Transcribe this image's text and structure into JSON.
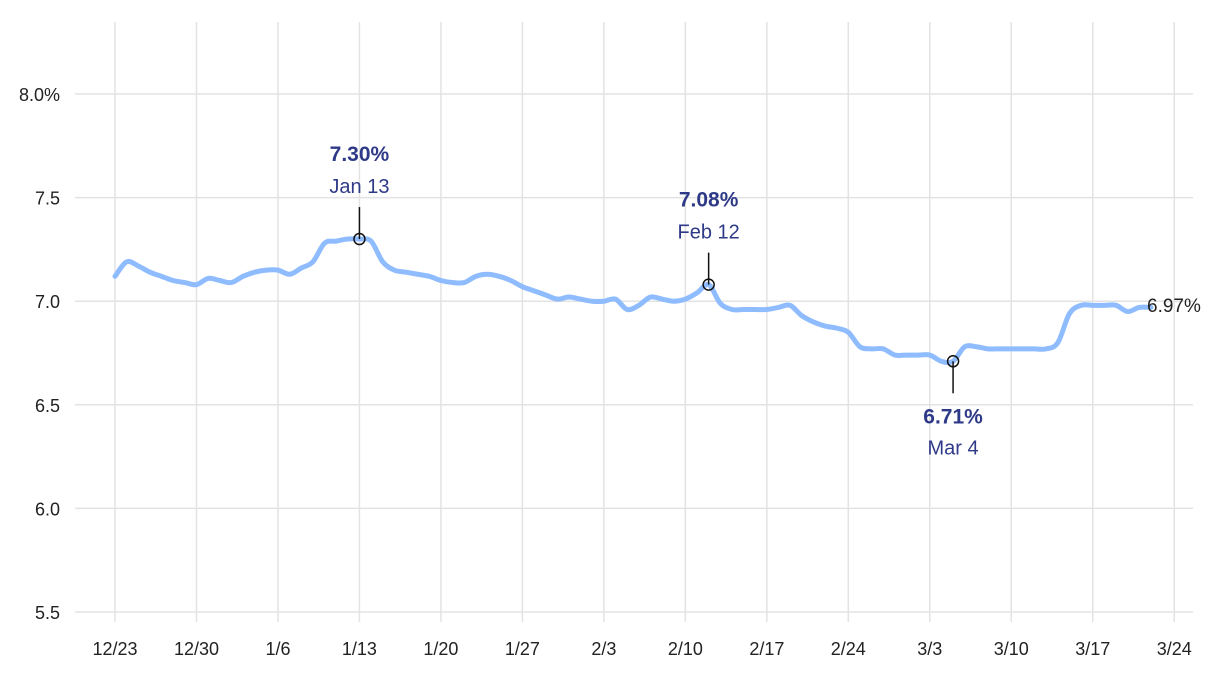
{
  "chart_data": {
    "type": "line",
    "title": "",
    "xlabel": "",
    "ylabel": "",
    "ylim": [
      5.5,
      8.2
    ],
    "y_ticks": [
      "5.5",
      "6.0",
      "6.5",
      "7.0",
      "7.5",
      "8.0%"
    ],
    "y_tick_values": [
      5.5,
      6.0,
      6.5,
      7.0,
      7.5,
      8.0
    ],
    "x_ticks": [
      "12/23",
      "12/30",
      "1/6",
      "1/13",
      "1/20",
      "1/27",
      "2/3",
      "2/10",
      "2/17",
      "2/24",
      "3/3",
      "3/10",
      "3/17",
      "3/24"
    ],
    "grid": true,
    "line_color": "#8fbcff",
    "annotation_color": "#2e3a87",
    "x": [
      "12/23",
      "12/24",
      "12/25",
      "12/26",
      "12/27",
      "12/28",
      "12/29",
      "12/30",
      "12/31",
      "1/1",
      "1/2",
      "1/3",
      "1/4",
      "1/5",
      "1/6",
      "1/7",
      "1/8",
      "1/9",
      "1/10",
      "1/11",
      "1/12",
      "1/13",
      "1/14",
      "1/15",
      "1/16",
      "1/17",
      "1/18",
      "1/19",
      "1/20",
      "1/21",
      "1/22",
      "1/23",
      "1/24",
      "1/25",
      "1/26",
      "1/27",
      "1/28",
      "1/29",
      "1/30",
      "1/31",
      "2/1",
      "2/2",
      "2/3",
      "2/4",
      "2/5",
      "2/6",
      "2/7",
      "2/8",
      "2/9",
      "2/10",
      "2/11",
      "2/12",
      "2/13",
      "2/14",
      "2/15",
      "2/16",
      "2/17",
      "2/18",
      "2/19",
      "2/20",
      "2/21",
      "2/22",
      "2/23",
      "2/24",
      "2/25",
      "2/26",
      "2/27",
      "2/28",
      "2/29",
      "3/1",
      "3/2",
      "3/3",
      "3/4",
      "3/5",
      "3/6",
      "3/7",
      "3/8",
      "3/9",
      "3/10",
      "3/11",
      "3/12",
      "3/13",
      "3/14",
      "3/15",
      "3/16",
      "3/17",
      "3/18",
      "3/19",
      "3/20",
      "3/21"
    ],
    "values": [
      7.12,
      7.19,
      7.17,
      7.14,
      7.12,
      7.1,
      7.09,
      7.08,
      7.11,
      7.1,
      7.09,
      7.12,
      7.14,
      7.15,
      7.15,
      7.13,
      7.16,
      7.19,
      7.28,
      7.29,
      7.3,
      7.3,
      7.29,
      7.19,
      7.15,
      7.14,
      7.13,
      7.12,
      7.1,
      7.09,
      7.09,
      7.12,
      7.13,
      7.12,
      7.1,
      7.07,
      7.05,
      7.03,
      7.01,
      7.02,
      7.01,
      7.0,
      7.0,
      7.01,
      6.96,
      6.98,
      7.02,
      7.01,
      7.0,
      7.01,
      7.04,
      7.08,
      6.99,
      6.96,
      6.96,
      6.96,
      6.96,
      6.97,
      6.98,
      6.93,
      6.9,
      6.88,
      6.87,
      6.85,
      6.78,
      6.77,
      6.77,
      6.74,
      6.74,
      6.74,
      6.74,
      6.71,
      6.71,
      6.78,
      6.78,
      6.77,
      6.77,
      6.77,
      6.77,
      6.77,
      6.77,
      6.8,
      6.94,
      6.98,
      6.98,
      6.98,
      6.98,
      6.95,
      6.97,
      6.97
    ],
    "annotations": [
      {
        "date": "1/13",
        "value": 7.3,
        "label": "7.30%",
        "date_label": "Jan 13",
        "position": "above"
      },
      {
        "date": "2/12",
        "value": 7.08,
        "label": "7.08%",
        "date_label": "Feb 12",
        "position": "above"
      },
      {
        "date": "3/4",
        "value": 6.71,
        "label": "6.71%",
        "date_label": "Mar 4",
        "position": "below"
      }
    ],
    "end_label": "6.97%"
  }
}
